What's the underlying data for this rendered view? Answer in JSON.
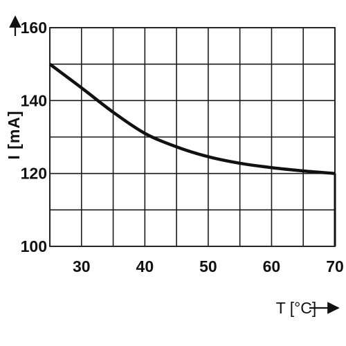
{
  "chart_data": {
    "type": "line",
    "xlabel": "T [°C]",
    "ylabel": "I [mA]",
    "xlim": [
      25,
      70
    ],
    "ylim": [
      100,
      160
    ],
    "x_ticks": [
      30,
      40,
      50,
      60,
      70
    ],
    "y_ticks": [
      100,
      120,
      140,
      160
    ],
    "grid": true,
    "series": [
      {
        "x": [
          25,
          30,
          35,
          40,
          45,
          50,
          55,
          60,
          65,
          70,
          70
        ],
        "values": [
          150,
          143.5,
          136.8,
          131.0,
          127.3,
          124.6,
          122.8,
          121.6,
          120.7,
          120.0,
          100
        ]
      }
    ]
  }
}
